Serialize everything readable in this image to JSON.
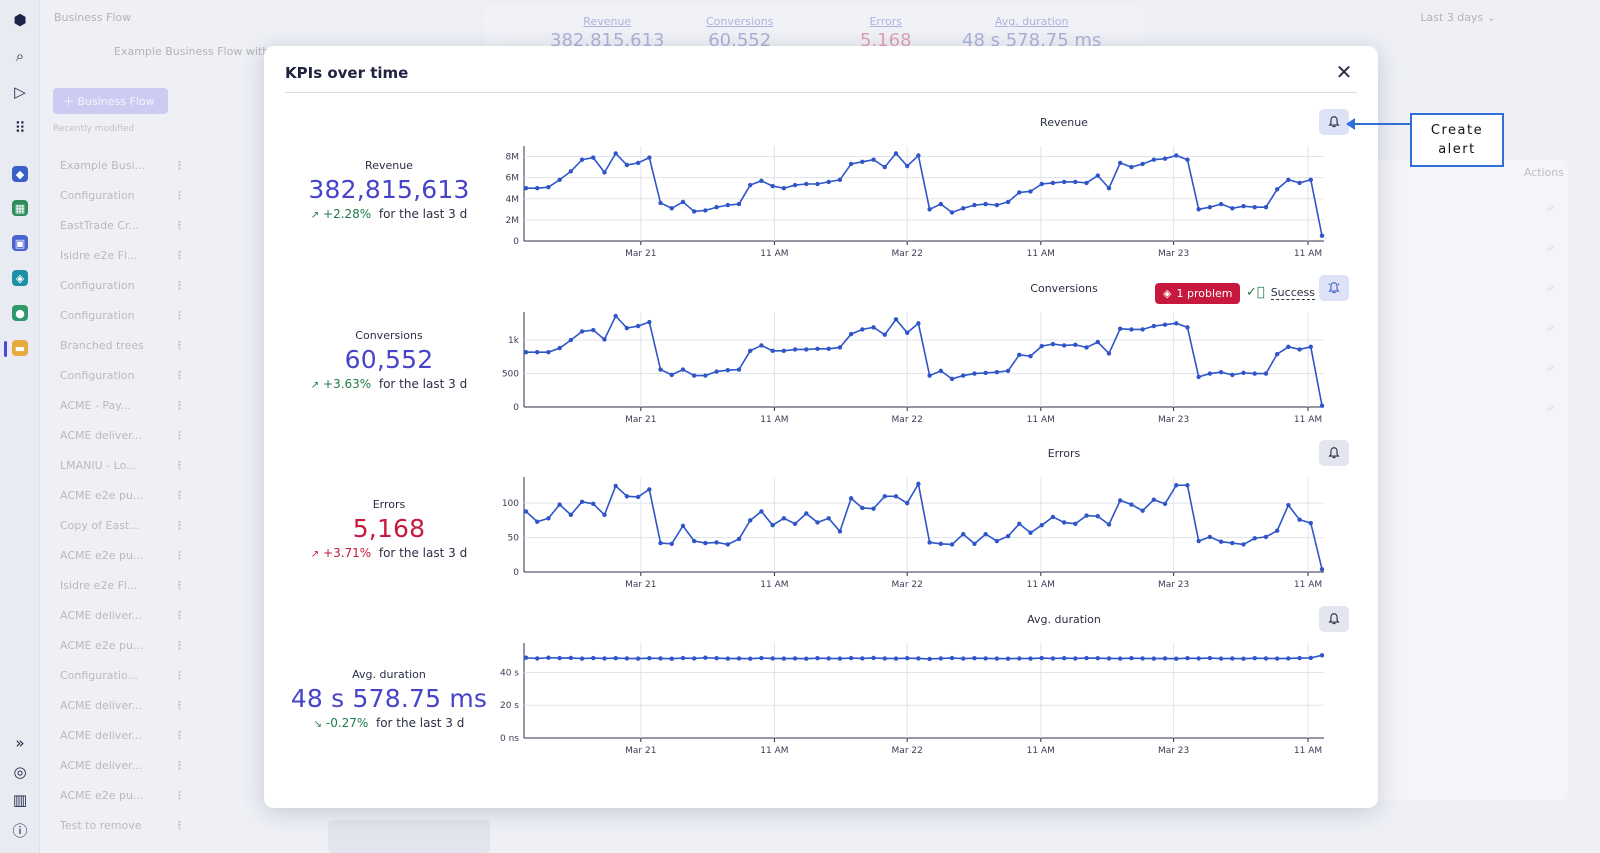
{
  "background": {
    "breadcrumb": "Business Flow",
    "subtitle": "Example Business Flow with",
    "new_button": "Business Flow",
    "recent_label": "Recently modified",
    "list": [
      "Example Busi...",
      "Configuration",
      "EastTrade Cr...",
      "Isidre e2e Fl...",
      "Configuration",
      "Configuration",
      "Branched trees",
      "Configuration",
      "ACME - Pay...",
      "ACME deliver...",
      "LMANIU - Lo...",
      "ACME e2e pu...",
      "Copy of East...",
      "ACME e2e pu...",
      "Isidre e2e Fl...",
      "ACME deliver...",
      "ACME e2e pu...",
      "Configuratio...",
      "ACME deliver...",
      "ACME deliver...",
      "ACME deliver...",
      "ACME e2e pu...",
      "Test to remove"
    ],
    "kpis": [
      {
        "label": "Revenue",
        "value": "382.815.613"
      },
      {
        "label": "Conversions",
        "value": "60.552"
      },
      {
        "label": "Errors",
        "value": "5.168"
      },
      {
        "label": "Avg. duration",
        "value": "48 s 578.75 ms"
      }
    ],
    "timeframe": "Last 3 days",
    "actions_label": "Actions"
  },
  "modal": {
    "title": "KPIs over time",
    "close_icon": "close-icon",
    "kpis": [
      {
        "label": "Revenue",
        "value": "382,815,613",
        "delta": "+2.28%",
        "period": "for the last 3 d",
        "direction": "up",
        "good": true
      },
      {
        "label": "Conversions",
        "value": "60,552",
        "delta": "+3.63%",
        "period": "for the last 3 d",
        "direction": "up",
        "good": true
      },
      {
        "label": "Errors",
        "value": "5,168",
        "delta": "+3.71%",
        "period": "for the last 3 d",
        "direction": "up",
        "good": false
      },
      {
        "label": "Avg. duration",
        "value": "48 s 578.75 ms",
        "delta": "-0.27%",
        "period": "for the last 3 d",
        "direction": "down",
        "good": true
      }
    ],
    "conversions_status": {
      "problem": "1 problem",
      "success": "Success"
    }
  },
  "annotation": {
    "line1": "Create",
    "line2": "alert"
  },
  "colors": {
    "accent": "#4744c9",
    "line": "#2f55c8",
    "error": "#c6193d",
    "positive": "#1e7a48"
  },
  "chart_data": [
    {
      "type": "line",
      "title": "Revenue",
      "x_ticks": [
        "Mar 21",
        "11 AM",
        "Mar 22",
        "11 AM",
        "Mar 23",
        "11 AM"
      ],
      "y_ticks": [
        "0",
        "2M",
        "4M",
        "6M",
        "8M"
      ],
      "ylim": [
        0,
        9000000
      ],
      "grid": true,
      "values": [
        5000000,
        5000000,
        5100000,
        5800000,
        6600000,
        7700000,
        7900000,
        6500000,
        8300000,
        7200000,
        7400000,
        7900000,
        3600000,
        3100000,
        3700000,
        2800000,
        2900000,
        3200000,
        3400000,
        3500000,
        5300000,
        5700000,
        5200000,
        5000000,
        5300000,
        5400000,
        5400000,
        5600000,
        5800000,
        7300000,
        7500000,
        7700000,
        7000000,
        8300000,
        7100000,
        8100000,
        3000000,
        3500000,
        2700000,
        3100000,
        3400000,
        3500000,
        3400000,
        3700000,
        4600000,
        4700000,
        5400000,
        5500000,
        5600000,
        5600000,
        5500000,
        6200000,
        5000000,
        7400000,
        7000000,
        7300000,
        7700000,
        7800000,
        8100000,
        7700000,
        3000000,
        3200000,
        3500000,
        3100000,
        3300000,
        3200000,
        3200000,
        4900000,
        5800000,
        5500000,
        5800000,
        500000
      ]
    },
    {
      "type": "line",
      "title": "Conversions",
      "x_ticks": [
        "Mar 21",
        "11 AM",
        "Mar 22",
        "11 AM",
        "Mar 23",
        "11 AM"
      ],
      "y_ticks": [
        "0",
        "500",
        "1k"
      ],
      "ylim": [
        0,
        1420
      ],
      "grid": true,
      "values": [
        820,
        820,
        820,
        880,
        1000,
        1130,
        1150,
        1010,
        1360,
        1180,
        1210,
        1270,
        560,
        480,
        560,
        470,
        470,
        530,
        550,
        560,
        840,
        920,
        840,
        840,
        860,
        860,
        870,
        870,
        890,
        1090,
        1160,
        1190,
        1080,
        1310,
        1110,
        1250,
        470,
        540,
        420,
        470,
        500,
        510,
        520,
        540,
        780,
        760,
        910,
        940,
        920,
        930,
        890,
        970,
        800,
        1170,
        1160,
        1160,
        1210,
        1230,
        1250,
        1190,
        450,
        500,
        520,
        480,
        510,
        500,
        500,
        790,
        900,
        860,
        900,
        20
      ]
    },
    {
      "type": "line",
      "title": "Errors",
      "x_ticks": [
        "Mar 21",
        "11 AM",
        "Mar 22",
        "11 AM",
        "Mar 23",
        "11 AM"
      ],
      "y_ticks": [
        "0",
        "50",
        "100"
      ],
      "ylim": [
        0,
        138
      ],
      "grid": true,
      "values": [
        88,
        73,
        78,
        98,
        83,
        102,
        99,
        83,
        125,
        110,
        109,
        120,
        42,
        41,
        67,
        45,
        42,
        43,
        40,
        48,
        75,
        88,
        68,
        78,
        70,
        85,
        72,
        78,
        59,
        107,
        93,
        92,
        110,
        110,
        100,
        128,
        43,
        41,
        40,
        55,
        41,
        55,
        45,
        52,
        70,
        57,
        68,
        80,
        72,
        70,
        82,
        81,
        69,
        104,
        98,
        89,
        105,
        99,
        126,
        126,
        45,
        51,
        44,
        42,
        40,
        49,
        51,
        60,
        97,
        76,
        71,
        4
      ]
    },
    {
      "type": "line",
      "title": "Avg. duration",
      "x_ticks": [
        "Mar 21",
        "11 AM",
        "Mar 22",
        "11 AM",
        "Mar 23",
        "11 AM"
      ],
      "y_ticks": [
        "0 ns",
        "20 s",
        "40 s"
      ],
      "ylim": [
        0,
        58
      ],
      "grid": true,
      "values": [
        49,
        48.6,
        49,
        48.8,
        48.9,
        48.5,
        48.8,
        48.6,
        48.7,
        48.6,
        48.5,
        48.7,
        48.6,
        48.4,
        48.8,
        48.6,
        49,
        48.7,
        48.5,
        48.6,
        48.4,
        48.8,
        48.6,
        48.5,
        48.6,
        48.4,
        48.7,
        48.6,
        48.5,
        48.8,
        48.6,
        48.9,
        48.6,
        48.5,
        48.7,
        48.6,
        48.3,
        48.6,
        48.8,
        48.5,
        48.7,
        48.6,
        48.5,
        48.4,
        48.6,
        48.5,
        48.8,
        48.6,
        48.7,
        48.6,
        48.8,
        48.7,
        48.6,
        48.5,
        48.7,
        48.6,
        48.5,
        48.6,
        48.4,
        48.7,
        48.6,
        48.8,
        48.5,
        48.6,
        48.4,
        48.7,
        48.6,
        48.5,
        48.6,
        48.8,
        48.9,
        50.5
      ]
    }
  ]
}
